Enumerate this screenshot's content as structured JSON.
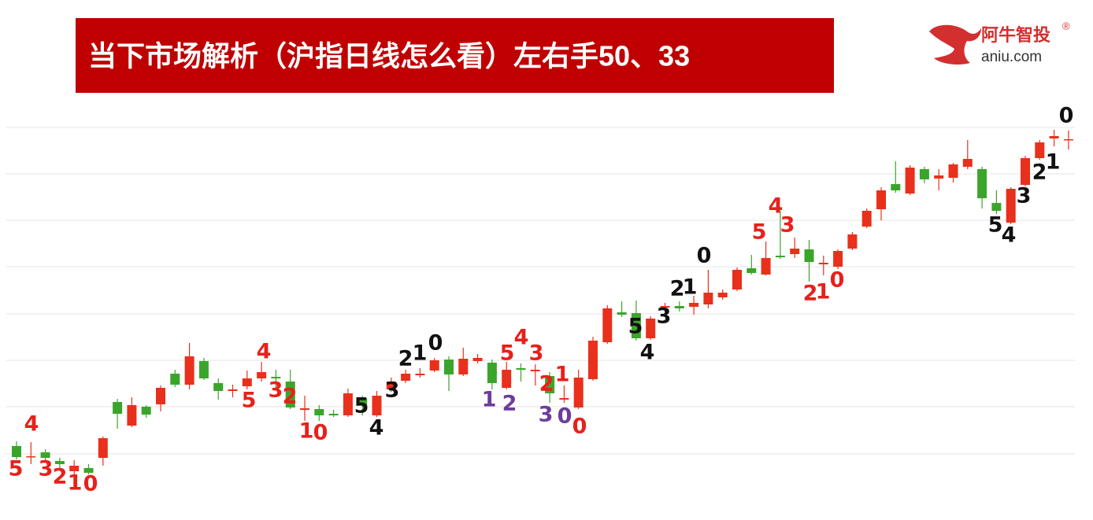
{
  "chart_data": {
    "type": "candlestick",
    "title": "当下市场解析（沪指日线怎么看）左右手50、33",
    "logo": {
      "name": "阿牛智投",
      "mark": "®",
      "site": "aniu.com"
    },
    "up_color": "#e8301c",
    "down_color": "#3aa52a",
    "grid": true,
    "ylim": [
      0,
      520
    ],
    "open": [
      83,
      69,
      75,
      64,
      51,
      55,
      68,
      139,
      109,
      133,
      136,
      175,
      161,
      191,
      163,
      153,
      159,
      169,
      171,
      165,
      129,
      130,
      124,
      122,
      144,
      122,
      155,
      166,
      173,
      179,
      193,
      174,
      191,
      189,
      157,
      182,
      178,
      172,
      142,
      132,
      168,
      215,
      253,
      252,
      220,
      259,
      261,
      260,
      263,
      272,
      282,
      309,
      301,
      325,
      327,
      333,
      314,
      311,
      334,
      362,
      384,
      416,
      404,
      435,
      423,
      424,
      438,
      435,
      392,
      367,
      415,
      449,
      474,
      472
    ],
    "high": [
      89,
      88,
      79,
      68,
      65,
      60,
      95,
      143,
      145,
      135,
      160,
      180,
      214,
      195,
      169,
      161,
      179,
      190,
      180,
      180,
      147,
      135,
      129,
      156,
      147,
      153,
      170,
      180,
      182,
      195,
      197,
      208,
      200,
      193,
      190,
      188,
      187,
      177,
      160,
      180,
      222,
      262,
      267,
      268,
      248,
      265,
      267,
      274,
      307,
      282,
      310,
      326,
      343,
      382,
      348,
      345,
      325,
      333,
      355,
      385,
      412,
      445,
      440,
      438,
      435,
      443,
      472,
      438,
      408,
      412,
      452,
      472,
      485,
      484
    ],
    "low": [
      66,
      60,
      65,
      55,
      47,
      47,
      58,
      105,
      107,
      119,
      127,
      158,
      155,
      167,
      142,
      145,
      155,
      165,
      157,
      130,
      115,
      115,
      120,
      120,
      122,
      120,
      152,
      163,
      170,
      177,
      153,
      172,
      188,
      155,
      155,
      165,
      160,
      138,
      138,
      130,
      166,
      213,
      247,
      217,
      218,
      250,
      254,
      250,
      258,
      269,
      280,
      301,
      300,
      321,
      322,
      292,
      300,
      308,
      332,
      360,
      370,
      405,
      402,
      417,
      408,
      418,
      435,
      385,
      378,
      365,
      413,
      447,
      464,
      460
    ],
    "close": [
      69,
      70,
      68,
      60,
      58,
      49,
      93,
      124,
      135,
      123,
      157,
      161,
      197,
      169,
      153,
      155,
      169,
      177,
      169,
      132,
      131,
      122,
      122,
      150,
      134,
      147,
      165,
      175,
      175,
      192,
      174,
      194,
      195,
      163,
      180,
      180,
      180,
      150,
      144,
      170,
      217,
      258,
      250,
      220,
      245,
      261,
      258,
      265,
      278,
      278,
      307,
      303,
      322,
      323,
      334,
      317,
      316,
      331,
      352,
      382,
      408,
      408,
      437,
      422,
      427,
      441,
      448,
      398,
      382,
      410,
      449,
      469,
      477,
      473
    ],
    "annotations": [
      {
        "text": "5",
        "color": "#e8201a"
      },
      {
        "text": "4",
        "color": "#e8201a"
      },
      {
        "text": "3",
        "color": "#e8201a"
      },
      {
        "text": "2",
        "color": "#e8201a"
      },
      {
        "text": "1",
        "color": "#e8201a"
      },
      {
        "text": "0",
        "color": "#e8201a"
      },
      {
        "text": "4",
        "color": "#e8201a"
      },
      {
        "text": "5",
        "color": "#e8201a"
      },
      {
        "text": "3",
        "color": "#e8201a"
      },
      {
        "text": "2",
        "color": "#e8201a"
      },
      {
        "text": "1",
        "color": "#e8201a"
      },
      {
        "text": "0",
        "color": "#e8201a"
      },
      {
        "text": "5",
        "color": "#111111"
      },
      {
        "text": "4",
        "color": "#111111"
      },
      {
        "text": "3",
        "color": "#111111"
      },
      {
        "text": "2",
        "color": "#111111"
      },
      {
        "text": "1",
        "color": "#111111"
      },
      {
        "text": "0",
        "color": "#111111"
      },
      {
        "text": "5",
        "color": "#e8201a"
      },
      {
        "text": "4",
        "color": "#e8201a"
      },
      {
        "text": "3",
        "color": "#e8201a"
      },
      {
        "text": "1",
        "color": "#6a3d9a"
      },
      {
        "text": "2",
        "color": "#6a3d9a"
      },
      {
        "text": "2",
        "color": "#e8201a"
      },
      {
        "text": "3",
        "color": "#6a3d9a"
      },
      {
        "text": "0",
        "color": "#6a3d9a"
      },
      {
        "text": "1",
        "color": "#e8201a"
      },
      {
        "text": "0",
        "color": "#e8201a"
      },
      {
        "text": "5",
        "color": "#111111"
      },
      {
        "text": "4",
        "color": "#111111"
      },
      {
        "text": "3",
        "color": "#111111"
      },
      {
        "text": "2",
        "color": "#111111"
      },
      {
        "text": "1",
        "color": "#111111"
      },
      {
        "text": "0",
        "color": "#111111"
      },
      {
        "text": "5",
        "color": "#e8201a"
      },
      {
        "text": "4",
        "color": "#e8201a"
      },
      {
        "text": "3",
        "color": "#e8201a"
      },
      {
        "text": "2",
        "color": "#e8201a"
      },
      {
        "text": "1",
        "color": "#e8201a"
      },
      {
        "text": "0",
        "color": "#e8201a"
      },
      {
        "text": "5",
        "color": "#111111"
      },
      {
        "text": "4",
        "color": "#111111"
      },
      {
        "text": "3",
        "color": "#111111"
      },
      {
        "text": "2",
        "color": "#111111"
      },
      {
        "text": "1",
        "color": "#111111"
      },
      {
        "text": "0",
        "color": "#111111"
      }
    ]
  }
}
